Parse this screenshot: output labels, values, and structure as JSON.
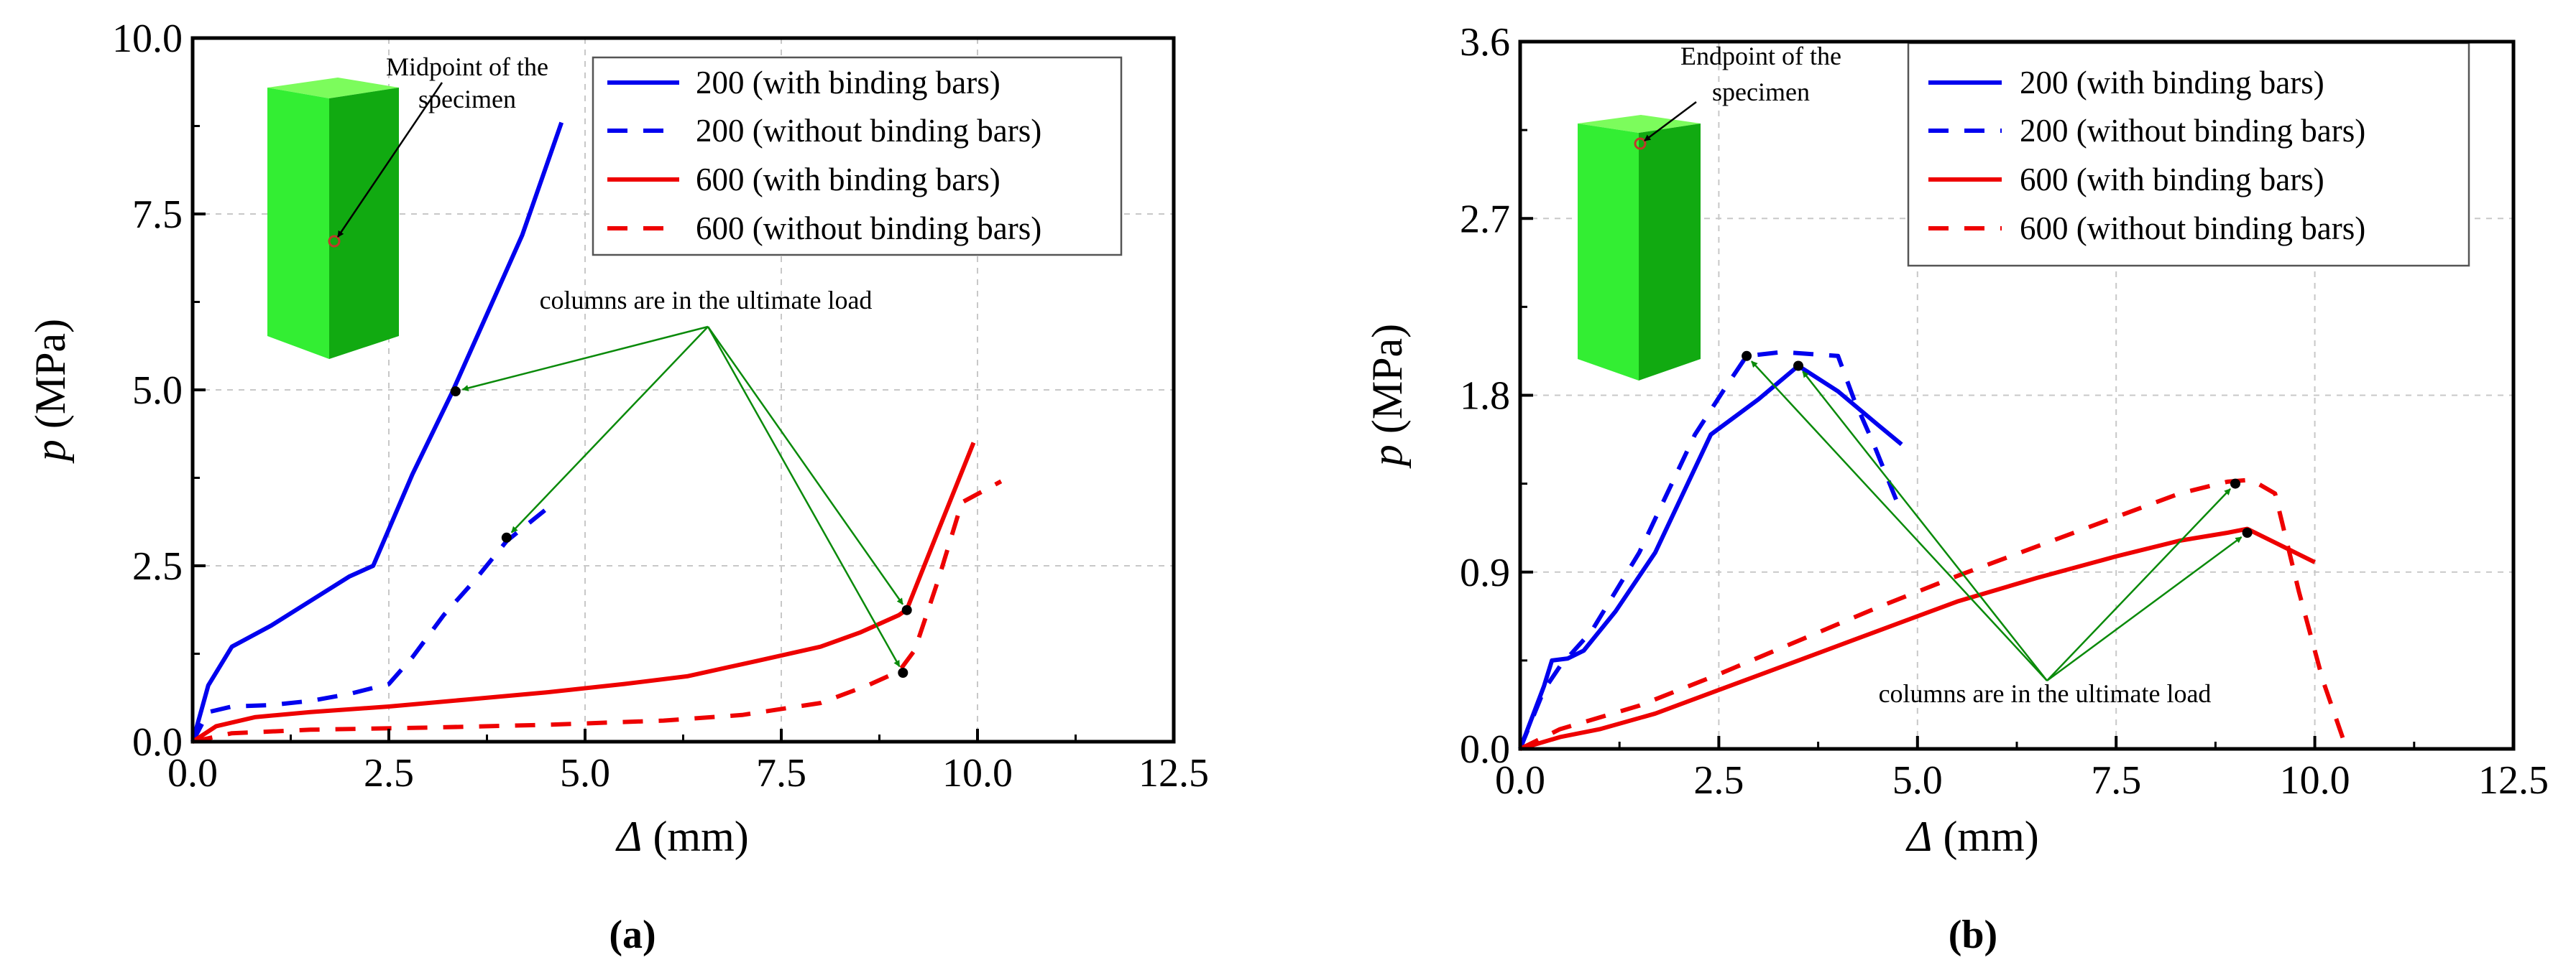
{
  "chart_data": [
    {
      "type": "line",
      "panel_label": "(a)",
      "xlabel": "Δ (mm)",
      "ylabel": "p (MPa)",
      "ylabel_symbol": "p",
      "ylabel_unit": " (MPa)",
      "xlabel_symbol": "Δ",
      "xlabel_unit": " (mm)",
      "xlim": [
        0,
        12.5
      ],
      "ylim": [
        0,
        10
      ],
      "xticks": [
        "0.0",
        "2.5",
        "5.0",
        "7.5",
        "10.0",
        "12.5"
      ],
      "yticks": [
        "0.0",
        "2.5",
        "5.0",
        "7.5",
        "10.0"
      ],
      "grid": true,
      "legend_position": "top-right",
      "series": [
        {
          "name": "200 (with binding bars)",
          "color": "#0000ee",
          "style": "solid",
          "x": [
            0,
            0.2,
            0.5,
            1.0,
            1.5,
            2.0,
            2.3,
            2.8,
            3.3,
            3.8,
            4.2,
            4.7
          ],
          "y": [
            0,
            0.8,
            1.35,
            1.65,
            2.0,
            2.35,
            2.5,
            3.8,
            4.95,
            6.2,
            7.2,
            8.8
          ]
        },
        {
          "name": "200 (without binding bars)",
          "color": "#0000ee",
          "style": "dashed",
          "x": [
            0,
            0.2,
            0.5,
            1.0,
            1.5,
            2.0,
            2.5,
            2.8,
            3.2,
            3.6,
            4.0,
            4.5
          ],
          "y": [
            0,
            0.42,
            0.5,
            0.52,
            0.58,
            0.68,
            0.82,
            1.2,
            1.8,
            2.3,
            2.85,
            3.3
          ]
        },
        {
          "name": "600 (with binding bars)",
          "color": "#ee0000",
          "style": "solid",
          "x": [
            0,
            0.3,
            0.8,
            1.5,
            2.5,
            3.5,
            4.5,
            5.5,
            6.3,
            7.2,
            8.0,
            8.5,
            9.0,
            9.1,
            9.5,
            9.95
          ],
          "y": [
            0,
            0.22,
            0.35,
            0.42,
            0.5,
            0.6,
            0.7,
            0.82,
            0.93,
            1.15,
            1.35,
            1.55,
            1.8,
            1.88,
            3.0,
            4.25
          ]
        },
        {
          "name": "600 (without binding bars)",
          "color": "#ee0000",
          "style": "dashed",
          "x": [
            0,
            0.5,
            1.5,
            3.0,
            4.5,
            6.0,
            7.0,
            8.0,
            8.6,
            9.0,
            9.2,
            9.5,
            9.8,
            10.3
          ],
          "y": [
            0,
            0.12,
            0.17,
            0.2,
            0.24,
            0.3,
            0.38,
            0.55,
            0.8,
            1.0,
            1.3,
            2.3,
            3.4,
            3.7
          ]
        }
      ],
      "points": [
        {
          "x": 3.35,
          "y": 4.98
        },
        {
          "x": 4.0,
          "y": 2.9
        },
        {
          "x": 9.1,
          "y": 1.87
        },
        {
          "x": 9.05,
          "y": 0.98
        }
      ],
      "annotation": {
        "text": "columns are in the ultimate load",
        "x": 6.5,
        "y": 5.85
      },
      "specimen_label": [
        "Midpoint of the",
        "specimen"
      ]
    },
    {
      "type": "line",
      "panel_label": "(b)",
      "xlabel": "Δ (mm)",
      "ylabel": "p (MPa)",
      "ylabel_symbol": "p",
      "ylabel_unit": " (MPa)",
      "xlabel_symbol": "Δ",
      "xlabel_unit": " (mm)",
      "xlim": [
        0,
        12.5
      ],
      "ylim": [
        0,
        3.6
      ],
      "xticks": [
        "0.0",
        "2.5",
        "5.0",
        "7.5",
        "10.0",
        "12.5"
      ],
      "yticks": [
        "0.0",
        "0.9",
        "1.8",
        "2.7",
        "3.6"
      ],
      "grid": true,
      "legend_position": "top-right",
      "series": [
        {
          "name": "200 (with binding bars)",
          "color": "#0000ee",
          "style": "solid",
          "x": [
            0,
            0.3,
            0.4,
            0.6,
            0.8,
            1.2,
            1.7,
            2.4,
            3.0,
            3.5,
            4.0,
            4.5,
            4.8
          ],
          "y": [
            0,
            0.32,
            0.45,
            0.46,
            0.5,
            0.7,
            1.0,
            1.6,
            1.78,
            1.95,
            1.82,
            1.65,
            1.55
          ]
        },
        {
          "name": "200 (without binding bars)",
          "color": "#0000ee",
          "style": "dashed",
          "x": [
            0,
            0.3,
            0.5,
            0.9,
            1.5,
            2.2,
            2.6,
            2.85,
            3.3,
            4.0,
            4.2,
            4.45,
            4.75
          ],
          "y": [
            0,
            0.3,
            0.42,
            0.6,
            1.0,
            1.6,
            1.85,
            2.0,
            2.02,
            2.0,
            1.78,
            1.55,
            1.25
          ]
        },
        {
          "name": "600 (with binding bars)",
          "color": "#ee0000",
          "style": "solid",
          "x": [
            0,
            0.5,
            1.0,
            1.7,
            2.5,
            3.5,
            4.5,
            5.5,
            6.5,
            7.5,
            8.3,
            8.9,
            9.15,
            9.5,
            10.0
          ],
          "y": [
            0,
            0.06,
            0.1,
            0.18,
            0.3,
            0.45,
            0.6,
            0.75,
            0.87,
            0.98,
            1.06,
            1.1,
            1.12,
            1.05,
            0.95
          ]
        },
        {
          "name": "600 (without binding bars)",
          "color": "#ee0000",
          "style": "dashed",
          "x": [
            0,
            0.5,
            1.5,
            2.5,
            3.5,
            4.5,
            5.5,
            6.5,
            7.5,
            8.3,
            8.9,
            9.2,
            9.5,
            9.8,
            10.1,
            10.4
          ],
          "y": [
            0,
            0.1,
            0.22,
            0.38,
            0.55,
            0.72,
            0.88,
            1.03,
            1.18,
            1.3,
            1.36,
            1.37,
            1.3,
            0.8,
            0.35,
            0.0
          ]
        }
      ],
      "points": [
        {
          "x": 2.85,
          "y": 2.0
        },
        {
          "x": 3.5,
          "y": 1.95
        },
        {
          "x": 9.0,
          "y": 1.35
        },
        {
          "x": 9.15,
          "y": 1.1
        }
      ],
      "annotation": {
        "text": "columns are in the ultimate load",
        "x": 6.65,
        "y": 0.34
      },
      "specimen_label": [
        "Endpoint of the",
        "specimen"
      ]
    }
  ]
}
